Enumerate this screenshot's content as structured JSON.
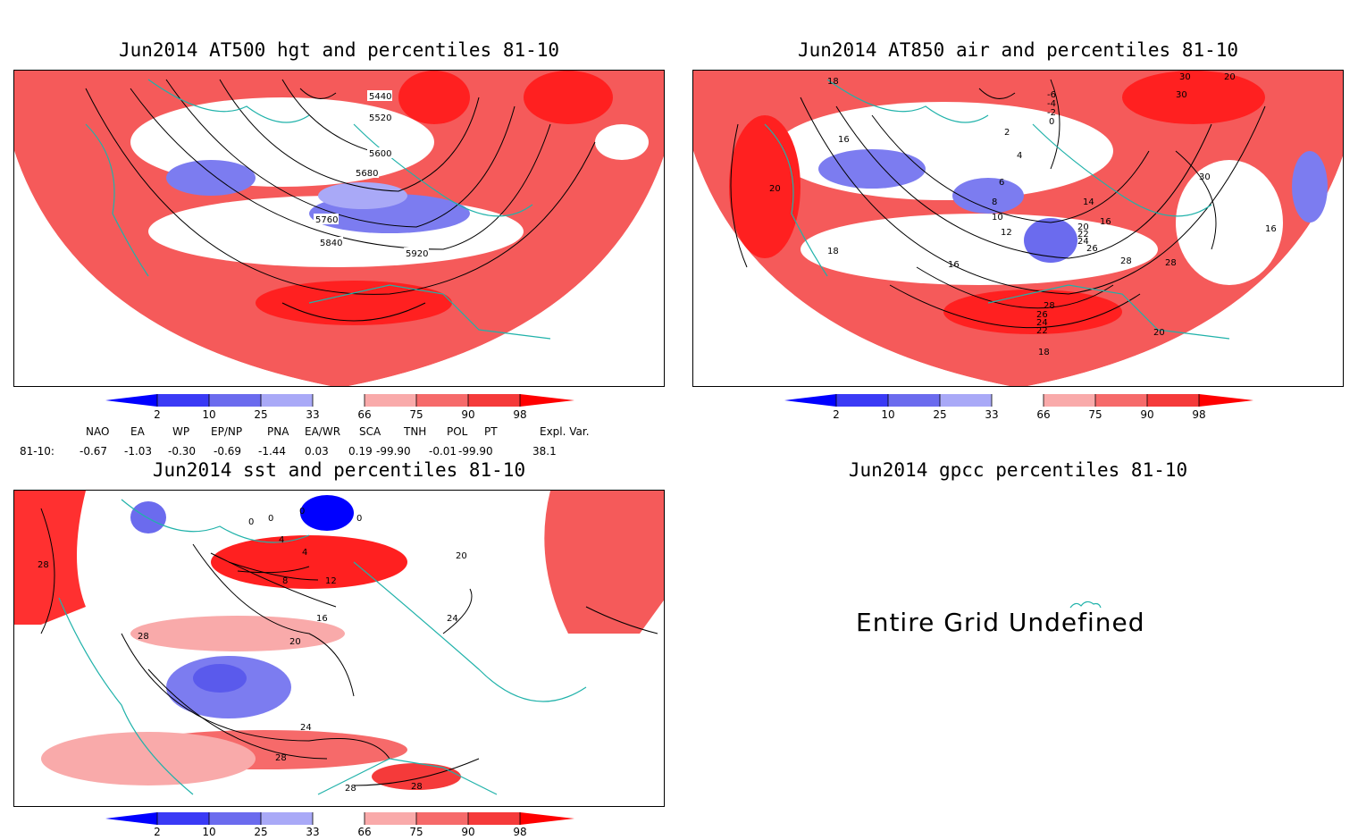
{
  "panels": [
    {
      "title": "Jun2014 AT500 hgt and percentiles 81-10",
      "contour_labels": [
        "5440",
        "5520",
        "5600",
        "5680",
        "5760",
        "5840",
        "5920"
      ]
    },
    {
      "title": "Jun2014 AT850 air and percentiles 81-10",
      "contour_labels": [
        "18",
        "16",
        "20",
        "18",
        "-6",
        "-4",
        "-2",
        "0",
        "2",
        "4",
        "6",
        "8",
        "10",
        "12",
        "14",
        "16",
        "20",
        "22",
        "24",
        "26",
        "28",
        "30",
        "20",
        "28",
        "26",
        "24",
        "22",
        "18",
        "20",
        "30",
        "16",
        "16",
        "28",
        "30"
      ]
    },
    {
      "title": "Jun2014 sst and percentiles 81-10",
      "contour_labels": [
        "28",
        "0",
        "0",
        "0",
        "4",
        "0",
        "4",
        "8",
        "12",
        "16",
        "20",
        "20",
        "24",
        "28",
        "28",
        "28",
        "28",
        "24"
      ]
    },
    {
      "title": "Jun2014 gpcc percentiles 81-10",
      "message": "Entire Grid Undefined"
    }
  ],
  "colorbar": {
    "labels": [
      "2",
      "10",
      "25",
      "33",
      "66",
      "75",
      "90",
      "98"
    ],
    "colors": [
      "#0000ff",
      "#3a3af5",
      "#6b6bee",
      "#a9a9f7",
      "#ffffff",
      "#f9aaaa",
      "#f66a6a",
      "#f53a3a",
      "#ff0000"
    ]
  },
  "indices": {
    "headers": [
      "NAO",
      "EA",
      "WP",
      "EP/NP",
      "PNA",
      "EA/WR",
      "SCA",
      "TNH",
      "POL",
      "PT",
      "Expl. Var."
    ],
    "row_label": "81-10:",
    "values": [
      "-0.67",
      "-1.03",
      "-0.30",
      "-0.69",
      "-1.44",
      "0.03",
      "0.19",
      "-99.90",
      "-0.01",
      "-99.90",
      "38.1"
    ]
  }
}
